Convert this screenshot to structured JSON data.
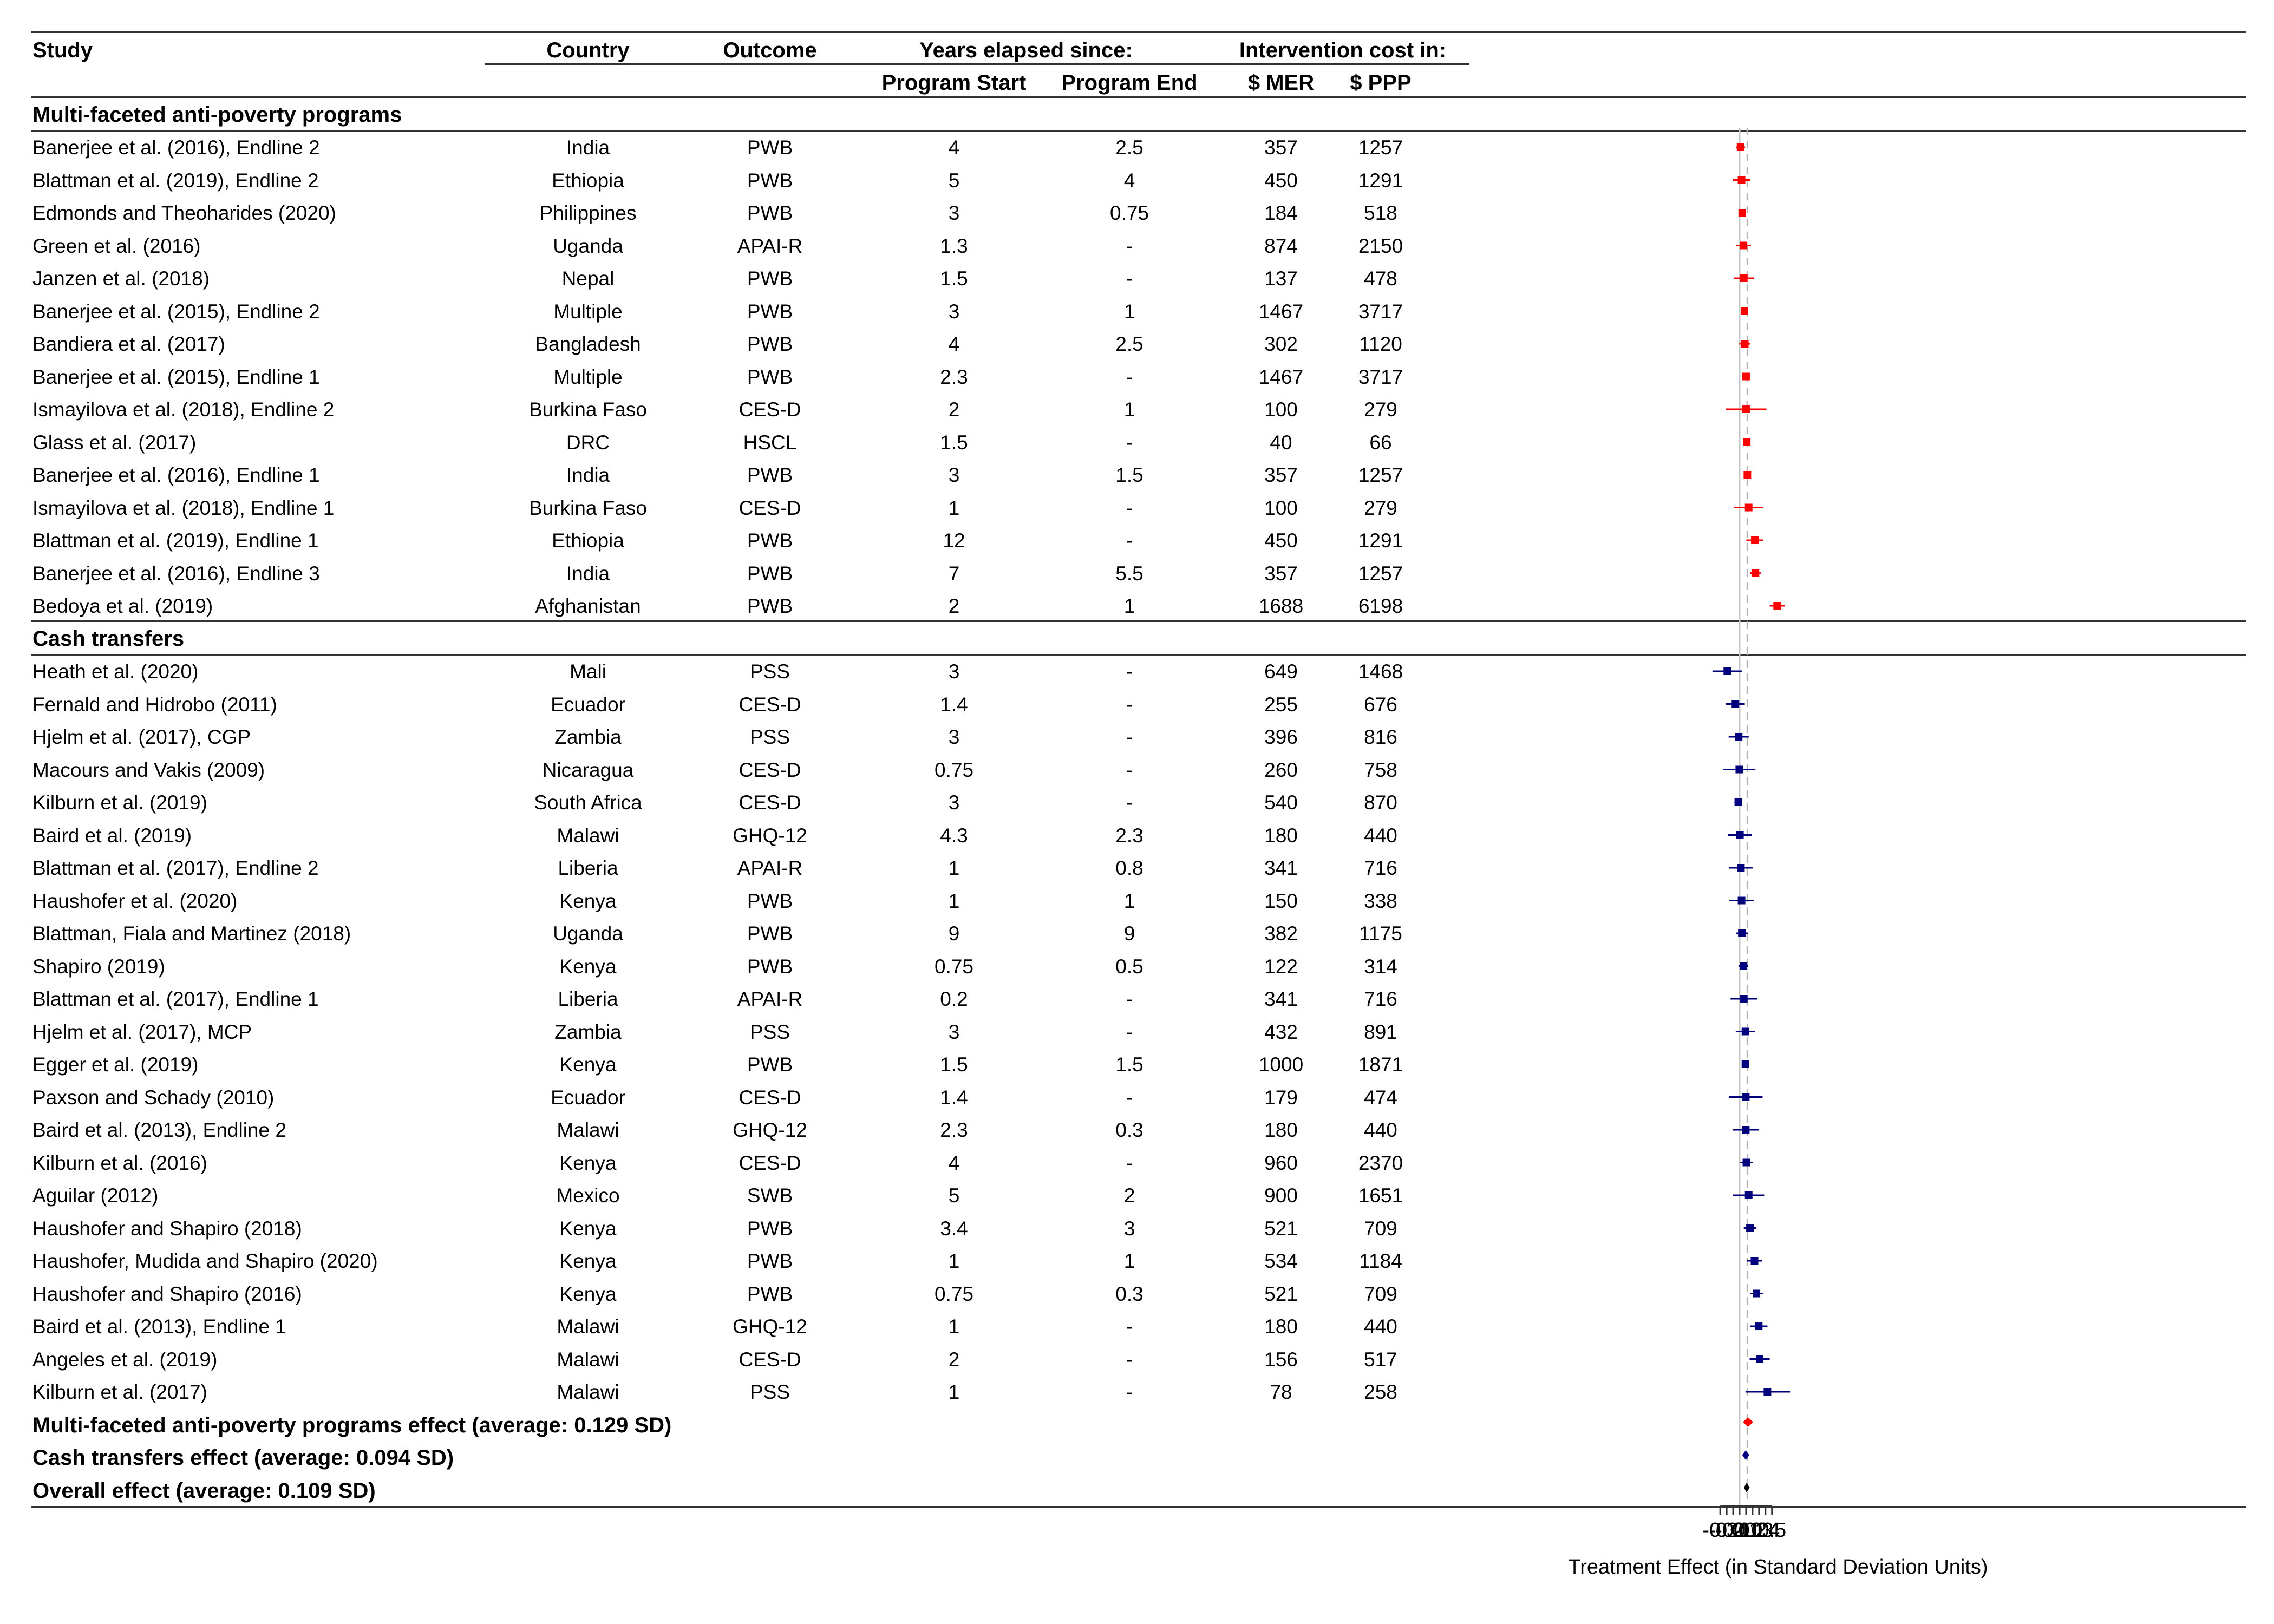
{
  "headers": {
    "study": "Study",
    "country": "Country",
    "outcome": "Outcome",
    "years_group": "Years elapsed since:",
    "program_start": "Program Start",
    "program_end": "Program End",
    "cost_group": "Intervention cost in:",
    "mer": "$ MER",
    "ppp": "$ PPP"
  },
  "sections": [
    {
      "title": "Multi-faceted anti-poverty programs",
      "color": "#ff0000",
      "rows": [
        {
          "study": "Banerjee et al. (2016), Endline 2",
          "country": "India",
          "outcome": "PWB",
          "start": "4",
          "end": "2.5",
          "mer": "357",
          "ppp": "1257"
        },
        {
          "study": "Blattman et al. (2019), Endline 2",
          "country": "Ethiopia",
          "outcome": "PWB",
          "start": "5",
          "end": "4",
          "mer": "450",
          "ppp": "1291"
        },
        {
          "study": "Edmonds and Theoharides (2020)",
          "country": "Philippines",
          "outcome": "PWB",
          "start": "3",
          "end": "0.75",
          "mer": "184",
          "ppp": "518"
        },
        {
          "study": "Green et al. (2016)",
          "country": "Uganda",
          "outcome": "APAI-R",
          "start": "1.3",
          "end": "-",
          "mer": "874",
          "ppp": "2150"
        },
        {
          "study": "Janzen et al. (2018)",
          "country": "Nepal",
          "outcome": "PWB",
          "start": "1.5",
          "end": "-",
          "mer": "137",
          "ppp": "478"
        },
        {
          "study": "Banerjee et al. (2015), Endline 2",
          "country": "Multiple",
          "outcome": "PWB",
          "start": "3",
          "end": "1",
          "mer": "1467",
          "ppp": "3717"
        },
        {
          "study": "Bandiera et al. (2017)",
          "country": "Bangladesh",
          "outcome": "PWB",
          "start": "4",
          "end": "2.5",
          "mer": "302",
          "ppp": "1120"
        },
        {
          "study": "Banerjee et al. (2015), Endline 1",
          "country": "Multiple",
          "outcome": "PWB",
          "start": "2.3",
          "end": "-",
          "mer": "1467",
          "ppp": "3717"
        },
        {
          "study": "Ismayilova et al. (2018), Endline 2",
          "country": "Burkina Faso",
          "outcome": "CES-D",
          "start": "2",
          "end": "1",
          "mer": "100",
          "ppp": "279"
        },
        {
          "study": "Glass et al. (2017)",
          "country": "DRC",
          "outcome": "HSCL",
          "start": "1.5",
          "end": "-",
          "mer": "40",
          "ppp": "66"
        },
        {
          "study": "Banerjee et al. (2016), Endline 1",
          "country": "India",
          "outcome": "PWB",
          "start": "3",
          "end": "1.5",
          "mer": "357",
          "ppp": "1257"
        },
        {
          "study": "Ismayilova et al. (2018), Endline 1",
          "country": "Burkina Faso",
          "outcome": "CES-D",
          "start": "1",
          "end": "-",
          "mer": "100",
          "ppp": "279"
        },
        {
          "study": "Blattman et al. (2019), Endline 1",
          "country": "Ethiopia",
          "outcome": "PWB",
          "start": "12",
          "end": "-",
          "mer": "450",
          "ppp": "1291"
        },
        {
          "study": "Banerjee et al. (2016), Endline 3",
          "country": "India",
          "outcome": "PWB",
          "start": "7",
          "end": "5.5",
          "mer": "357",
          "ppp": "1257"
        },
        {
          "study": "Bedoya et al. (2019)",
          "country": "Afghanistan",
          "outcome": "PWB",
          "start": "2",
          "end": "1",
          "mer": "1688",
          "ppp": "6198"
        }
      ]
    },
    {
      "title": "Cash transfers",
      "color": "#00007f",
      "rows": [
        {
          "study": "Heath et al. (2020)",
          "country": "Mali",
          "outcome": "PSS",
          "start": "3",
          "end": "-",
          "mer": "649",
          "ppp": "1468"
        },
        {
          "study": "Fernald and Hidrobo (2011)",
          "country": "Ecuador",
          "outcome": "CES-D",
          "start": "1.4",
          "end": "-",
          "mer": "255",
          "ppp": "676"
        },
        {
          "study": "Hjelm et al. (2017), CGP",
          "country": "Zambia",
          "outcome": "PSS",
          "start": "3",
          "end": "-",
          "mer": "396",
          "ppp": "816"
        },
        {
          "study": "Macours and Vakis (2009)",
          "country": "Nicaragua",
          "outcome": "CES-D",
          "start": "0.75",
          "end": "-",
          "mer": "260",
          "ppp": "758"
        },
        {
          "study": "Kilburn et al. (2019)",
          "country": "South Africa",
          "outcome": "CES-D",
          "start": "3",
          "end": "-",
          "mer": "540",
          "ppp": "870"
        },
        {
          "study": "Baird et al. (2019)",
          "country": "Malawi",
          "outcome": "GHQ-12",
          "start": "4.3",
          "end": "2.3",
          "mer": "180",
          "ppp": "440"
        },
        {
          "study": "Blattman et al. (2017), Endline 2",
          "country": "Liberia",
          "outcome": "APAI-R",
          "start": "1",
          "end": "0.8",
          "mer": "341",
          "ppp": "716"
        },
        {
          "study": "Haushofer et al. (2020)",
          "country": "Kenya",
          "outcome": "PWB",
          "start": "1",
          "end": "1",
          "mer": "150",
          "ppp": "338"
        },
        {
          "study": "Blattman, Fiala and Martinez (2018)",
          "country": "Uganda",
          "outcome": "PWB",
          "start": "9",
          "end": "9",
          "mer": "382",
          "ppp": "1175"
        },
        {
          "study": "Shapiro (2019)",
          "country": "Kenya",
          "outcome": "PWB",
          "start": "0.75",
          "end": "0.5",
          "mer": "122",
          "ppp": "314"
        },
        {
          "study": "Blattman et al. (2017), Endline 1",
          "country": "Liberia",
          "outcome": "APAI-R",
          "start": "0.2",
          "end": "-",
          "mer": "341",
          "ppp": "716"
        },
        {
          "study": "Hjelm et al. (2017), MCP",
          "country": "Zambia",
          "outcome": "PSS",
          "start": "3",
          "end": "-",
          "mer": "432",
          "ppp": "891"
        },
        {
          "study": "Egger et al. (2019)",
          "country": "Kenya",
          "outcome": "PWB",
          "start": "1.5",
          "end": "1.5",
          "mer": "1000",
          "ppp": "1871"
        },
        {
          "study": "Paxson and Schady (2010)",
          "country": "Ecuador",
          "outcome": "CES-D",
          "start": "1.4",
          "end": "-",
          "mer": "179",
          "ppp": "474"
        },
        {
          "study": "Baird et al. (2013), Endline 2",
          "country": "Malawi",
          "outcome": "GHQ-12",
          "start": "2.3",
          "end": "0.3",
          "mer": "180",
          "ppp": "440"
        },
        {
          "study": "Kilburn et al. (2016)",
          "country": "Kenya",
          "outcome": "CES-D",
          "start": "4",
          "end": "-",
          "mer": "960",
          "ppp": "2370"
        },
        {
          "study": "Aguilar (2012)",
          "country": "Mexico",
          "outcome": "SWB",
          "start": "5",
          "end": "2",
          "mer": "900",
          "ppp": "1651"
        },
        {
          "study": "Haushofer and Shapiro (2018)",
          "country": "Kenya",
          "outcome": "PWB",
          "start": "3.4",
          "end": "3",
          "mer": "521",
          "ppp": "709"
        },
        {
          "study": "Haushofer, Mudida and Shapiro (2020)",
          "country": "Kenya",
          "outcome": "PWB",
          "start": "1",
          "end": "1",
          "mer": "534",
          "ppp": "1184"
        },
        {
          "study": "Haushofer and Shapiro (2016)",
          "country": "Kenya",
          "outcome": "PWB",
          "start": "0.75",
          "end": "0.3",
          "mer": "521",
          "ppp": "709"
        },
        {
          "study": "Baird et al. (2013), Endline 1",
          "country": "Malawi",
          "outcome": "GHQ-12",
          "start": "1",
          "end": "-",
          "mer": "180",
          "ppp": "440"
        },
        {
          "study": "Angeles et al. (2019)",
          "country": "Malawi",
          "outcome": "CES-D",
          "start": "2",
          "end": "-",
          "mer": "156",
          "ppp": "517"
        },
        {
          "study": "Kilburn et al. (2017)",
          "country": "Malawi",
          "outcome": "PSS",
          "start": "1",
          "end": "-",
          "mer": "78",
          "ppp": "258"
        }
      ]
    }
  ],
  "summary": [
    {
      "label": "Multi-faceted anti-poverty programs effect (average: 0.129 SD)",
      "color": "#ff0000"
    },
    {
      "label": "Cash transfers effect (average: 0.094 SD)",
      "color": "#00007f"
    },
    {
      "label": "Overall effect (average: 0.109 SD)",
      "color": "#000000"
    }
  ],
  "chart_data": {
    "type": "forest",
    "xlabel": "Treatment Effect (in Standard Deviation Units)",
    "xticks": [
      "-0.3",
      "-0.2",
      "-0.1",
      "0",
      "0.1",
      "0.2",
      "0.3",
      "0.4",
      "0.5"
    ],
    "xlim": [
      -0.42,
      0.78
    ],
    "reference_line": 0,
    "overall_line": 0.12,
    "series": [
      {
        "name": "Multi-faceted anti-poverty programs",
        "color": "#ff0000",
        "points": [
          {
            "effect": 0.015,
            "lo": -0.055,
            "hi": 0.085
          },
          {
            "effect": 0.03,
            "lo": -0.1,
            "hi": 0.16
          },
          {
            "effect": 0.04,
            "lo": 0.015,
            "hi": 0.065
          },
          {
            "effect": 0.06,
            "lo": -0.055,
            "hi": 0.175
          },
          {
            "effect": 0.065,
            "lo": -0.09,
            "hi": 0.22
          },
          {
            "effect": 0.075,
            "lo": 0.035,
            "hi": 0.115
          },
          {
            "effect": 0.08,
            "lo": -0.005,
            "hi": 0.165
          },
          {
            "effect": 0.1,
            "lo": 0.06,
            "hi": 0.14
          },
          {
            "effect": 0.1,
            "lo": -0.215,
            "hi": 0.415
          },
          {
            "effect": 0.11,
            "lo": 0.095,
            "hi": 0.125
          },
          {
            "effect": 0.12,
            "lo": 0.065,
            "hi": 0.175
          },
          {
            "effect": 0.14,
            "lo": -0.085,
            "hi": 0.365
          },
          {
            "effect": 0.235,
            "lo": 0.105,
            "hi": 0.365
          },
          {
            "effect": 0.245,
            "lo": 0.165,
            "hi": 0.325
          },
          {
            "effect": 0.58,
            "lo": 0.465,
            "hi": 0.695
          }
        ],
        "summary": {
          "effect": 0.129,
          "lo": 0.05,
          "hi": 0.21
        }
      },
      {
        "name": "Cash transfers",
        "color": "#00007f",
        "points": [
          {
            "effect": -0.19,
            "lo": -0.42,
            "hi": 0.04
          },
          {
            "effect": -0.065,
            "lo": -0.21,
            "hi": 0.08
          },
          {
            "effect": -0.015,
            "lo": -0.17,
            "hi": 0.14
          },
          {
            "effect": -0.005,
            "lo": -0.255,
            "hi": 0.245
          },
          {
            "effect": -0.02,
            "lo": -0.08,
            "hi": 0.04
          },
          {
            "effect": 0.005,
            "lo": -0.18,
            "hi": 0.19
          },
          {
            "effect": 0.02,
            "lo": -0.16,
            "hi": 0.2
          },
          {
            "effect": 0.03,
            "lo": -0.165,
            "hi": 0.225
          },
          {
            "effect": 0.035,
            "lo": -0.055,
            "hi": 0.125
          },
          {
            "effect": 0.06,
            "lo": -0.01,
            "hi": 0.13
          },
          {
            "effect": 0.065,
            "lo": -0.14,
            "hi": 0.27
          },
          {
            "effect": 0.09,
            "lo": -0.06,
            "hi": 0.24
          },
          {
            "effect": 0.09,
            "lo": 0.03,
            "hi": 0.15
          },
          {
            "effect": 0.095,
            "lo": -0.165,
            "hi": 0.355
          },
          {
            "effect": 0.095,
            "lo": -0.11,
            "hi": 0.3
          },
          {
            "effect": 0.105,
            "lo": 0.01,
            "hi": 0.2
          },
          {
            "effect": 0.14,
            "lo": -0.1,
            "hi": 0.38
          },
          {
            "effect": 0.16,
            "lo": 0.065,
            "hi": 0.255
          },
          {
            "effect": 0.23,
            "lo": 0.115,
            "hi": 0.345
          },
          {
            "effect": 0.26,
            "lo": 0.16,
            "hi": 0.36
          },
          {
            "effect": 0.295,
            "lo": 0.16,
            "hi": 0.43
          },
          {
            "effect": 0.31,
            "lo": 0.155,
            "hi": 0.465
          },
          {
            "effect": 0.43,
            "lo": 0.09,
            "hi": 0.78
          }
        ],
        "summary": {
          "effect": 0.094,
          "lo": 0.04,
          "hi": 0.15
        }
      },
      {
        "name": "Overall",
        "color": "#000000",
        "points": [],
        "summary": {
          "effect": 0.109,
          "lo": 0.065,
          "hi": 0.155
        }
      }
    ]
  }
}
